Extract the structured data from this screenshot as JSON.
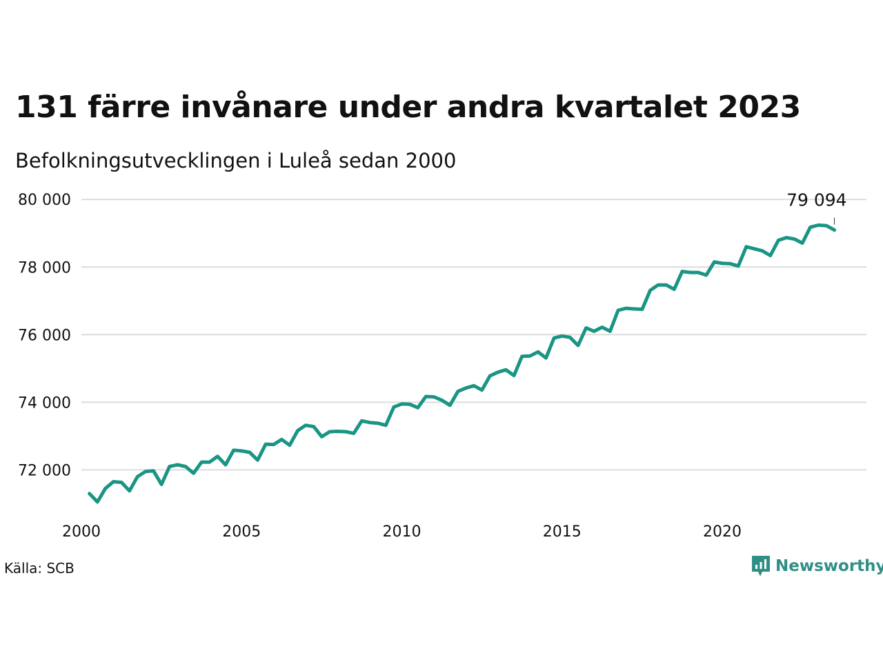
{
  "header": {
    "title": "131 färre invånare under andra kvartalet 2023",
    "subtitle": "Befolkningsutvecklingen i Luleå sedan 2000"
  },
  "footer": {
    "source": "Källa: SCB",
    "brand": "Newsworthy",
    "brand_icon": "newsworthy-logo-icon"
  },
  "colors": {
    "line": "#1a9484",
    "grid": "#dcdcdc",
    "brand": "#2f8f85"
  },
  "chart_data": {
    "type": "line",
    "title": "131 färre invånare under andra kvartalet 2023",
    "subtitle": "Befolkningsutvecklingen i Luleå sedan 2000",
    "xlabel": "",
    "ylabel": "",
    "xlim": [
      2000,
      2024.5
    ],
    "ylim": [
      70600,
      80800
    ],
    "x_ticks": [
      2000,
      2005,
      2010,
      2015,
      2020
    ],
    "x_tick_labels": [
      "2000",
      "2005",
      "2010",
      "2015",
      "2020"
    ],
    "y_ticks": [
      72000,
      74000,
      76000,
      78000,
      80000
    ],
    "y_tick_labels": [
      "72 000",
      "74 000",
      "76 000",
      "78 000",
      "80 000"
    ],
    "grid": "horizontal",
    "end_label": "79 094",
    "series": [
      {
        "x": [
          2000.25,
          2000.5,
          2000.75,
          2001,
          2001.25,
          2001.5,
          2001.75,
          2002,
          2002.25,
          2002.5,
          2002.75,
          2003,
          2003.25,
          2003.5,
          2003.75,
          2004,
          2004.25,
          2004.5,
          2004.75,
          2005,
          2005.25,
          2005.5,
          2005.75,
          2006,
          2006.25,
          2006.5,
          2006.75,
          2007,
          2007.25,
          2007.5,
          2007.75,
          2008,
          2008.25,
          2008.5,
          2008.75,
          2009,
          2009.25,
          2009.5,
          2009.75,
          2010,
          2010.25,
          2010.5,
          2010.75,
          2011,
          2011.25,
          2011.5,
          2011.75,
          2012,
          2012.25,
          2012.5,
          2012.75,
          2013,
          2013.25,
          2013.5,
          2013.75,
          2014,
          2014.25,
          2014.5,
          2014.75,
          2015,
          2015.25,
          2015.5,
          2015.75,
          2016,
          2016.25,
          2016.5,
          2016.75,
          2017,
          2017.25,
          2017.5,
          2017.75,
          2018,
          2018.25,
          2018.5,
          2018.75,
          2019,
          2019.25,
          2019.5,
          2019.75,
          2020,
          2020.25,
          2020.5,
          2020.75,
          2021,
          2021.25,
          2021.5,
          2021.75,
          2022,
          2022.25,
          2022.5,
          2022.75,
          2023,
          2023.25,
          2023.5
        ],
        "values": [
          71300,
          71050,
          71450,
          71650,
          71630,
          71380,
          71800,
          71950,
          71970,
          71570,
          72100,
          72150,
          72100,
          71900,
          72230,
          72230,
          72400,
          72150,
          72580,
          72560,
          72520,
          72290,
          72760,
          72750,
          72900,
          72730,
          73160,
          73320,
          73280,
          72980,
          73130,
          73140,
          73130,
          73080,
          73450,
          73400,
          73380,
          73320,
          73860,
          73950,
          73940,
          73840,
          74170,
          74160,
          74060,
          73910,
          74320,
          74420,
          74490,
          74360,
          74780,
          74890,
          74960,
          74790,
          75360,
          75370,
          75490,
          75310,
          75900,
          75960,
          75920,
          75680,
          76200,
          76100,
          76220,
          76100,
          76720,
          76780,
          76760,
          76750,
          77310,
          77470,
          77470,
          77340,
          77870,
          77840,
          77840,
          77760,
          78150,
          78110,
          78100,
          78030,
          78600,
          78540,
          78480,
          78340,
          78790,
          78870,
          78830,
          78710,
          79180,
          79240,
          79225,
          79094
        ]
      }
    ]
  }
}
